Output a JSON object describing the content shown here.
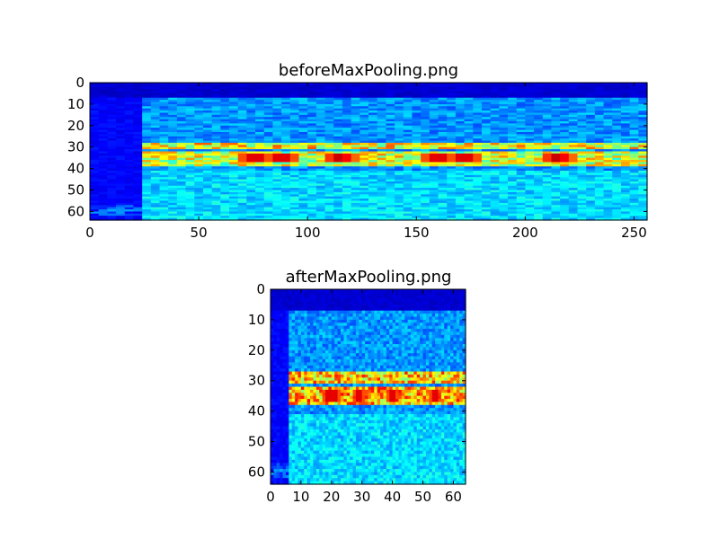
{
  "chart_data": [
    {
      "type": "heatmap",
      "title": "beforeMaxPooling.png",
      "xlabel": "",
      "ylabel": "",
      "cols": 256,
      "rows": 64,
      "xlim": [
        0,
        256
      ],
      "ylim": [
        64,
        0
      ],
      "x_ticks": [
        0,
        50,
        100,
        150,
        200,
        250
      ],
      "y_ticks": [
        0,
        10,
        20,
        30,
        40,
        50,
        60
      ],
      "colormap": "jet",
      "silent_region_cols": [
        0,
        26
      ],
      "bands": [
        {
          "row_start": 28,
          "row_end": 30,
          "level": 0.65
        },
        {
          "row_start": 32,
          "row_end": 38,
          "level": 0.6
        }
      ],
      "hotspot_cols": [
        76,
        88,
        115,
        160,
        172,
        215
      ]
    },
    {
      "type": "heatmap",
      "title": "afterMaxPooling.png",
      "xlabel": "",
      "ylabel": "",
      "cols": 64,
      "rows": 64,
      "xlim": [
        0,
        64
      ],
      "ylim": [
        64,
        0
      ],
      "x_ticks": [
        0,
        10,
        20,
        30,
        40,
        50,
        60
      ],
      "y_ticks": [
        0,
        10,
        20,
        30,
        40,
        50,
        60
      ],
      "colormap": "jet",
      "silent_region_cols": [
        0,
        6
      ],
      "bands": [
        {
          "row_start": 27,
          "row_end": 30,
          "level": 0.7
        },
        {
          "row_start": 32,
          "row_end": 37,
          "level": 0.72
        }
      ],
      "hotspot_cols": [
        19,
        21,
        29,
        40,
        54
      ]
    }
  ]
}
